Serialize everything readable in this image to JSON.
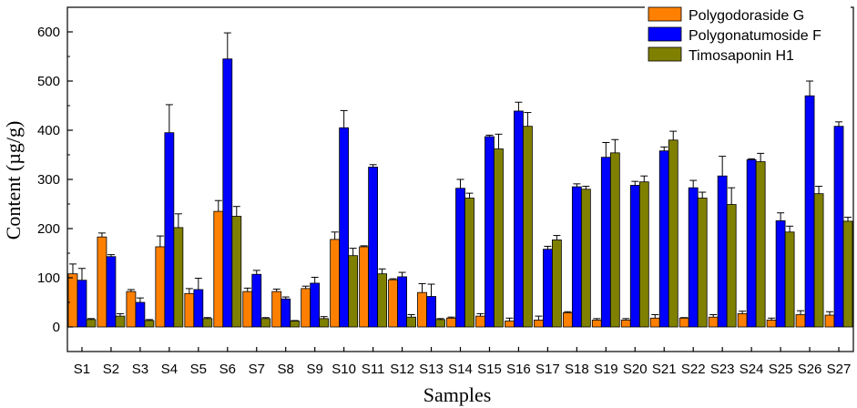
{
  "chart_data": {
    "type": "bar",
    "xlabel": "Samples",
    "ylabel": "Content (µg/g)",
    "ylim": [
      -50,
      650
    ],
    "yticks": [
      0,
      100,
      200,
      300,
      400,
      500,
      600
    ],
    "legend_position": "top-right",
    "grid": false,
    "error_bars": true,
    "categories": [
      "S1",
      "S2",
      "S3",
      "S4",
      "S5",
      "S6",
      "S7",
      "S8",
      "S9",
      "S10",
      "S11",
      "S12",
      "S13",
      "S14",
      "S15",
      "S16",
      "S17",
      "S18",
      "S19",
      "S20",
      "S21",
      "S22",
      "S23",
      "S24",
      "S25",
      "S26",
      "S27"
    ],
    "series": [
      {
        "name": "Polygodoraside G",
        "color": "#ff8000",
        "values": [
          108,
          183,
          72,
          163,
          68,
          235,
          72,
          72,
          78,
          178,
          163,
          96,
          70,
          18,
          22,
          12,
          14,
          29,
          14,
          14,
          18,
          18,
          20,
          27,
          14,
          25,
          24
        ],
        "errors": [
          20,
          8,
          4,
          22,
          10,
          22,
          7,
          5,
          5,
          15,
          2,
          2,
          18,
          2,
          5,
          6,
          8,
          2,
          3,
          3,
          7,
          1,
          5,
          5,
          4,
          8,
          7
        ]
      },
      {
        "name": "Polygonatumoside F",
        "color": "#0000ff",
        "values": [
          95,
          143,
          50,
          395,
          76,
          545,
          107,
          57,
          89,
          405,
          325,
          102,
          62,
          282,
          387,
          439,
          158,
          285,
          345,
          288,
          358,
          283,
          307,
          340,
          216,
          470,
          408
        ],
        "errors": [
          24,
          4,
          9,
          57,
          23,
          53,
          8,
          4,
          12,
          35,
          5,
          9,
          25,
          18,
          3,
          18,
          6,
          6,
          30,
          8,
          8,
          15,
          40,
          2,
          16,
          30,
          9
        ]
      },
      {
        "name": "Timosaponin H1",
        "color": "#808000",
        "values": [
          15,
          22,
          13,
          202,
          17,
          225,
          17,
          12,
          17,
          145,
          108,
          20,
          15,
          262,
          362,
          408,
          177,
          280,
          354,
          295,
          380,
          262,
          249,
          336,
          193,
          271,
          215
        ],
        "errors": [
          2,
          5,
          2,
          28,
          2,
          20,
          2,
          1,
          4,
          15,
          10,
          5,
          2,
          10,
          30,
          28,
          9,
          6,
          27,
          12,
          18,
          12,
          34,
          17,
          12,
          15,
          8
        ]
      }
    ]
  }
}
